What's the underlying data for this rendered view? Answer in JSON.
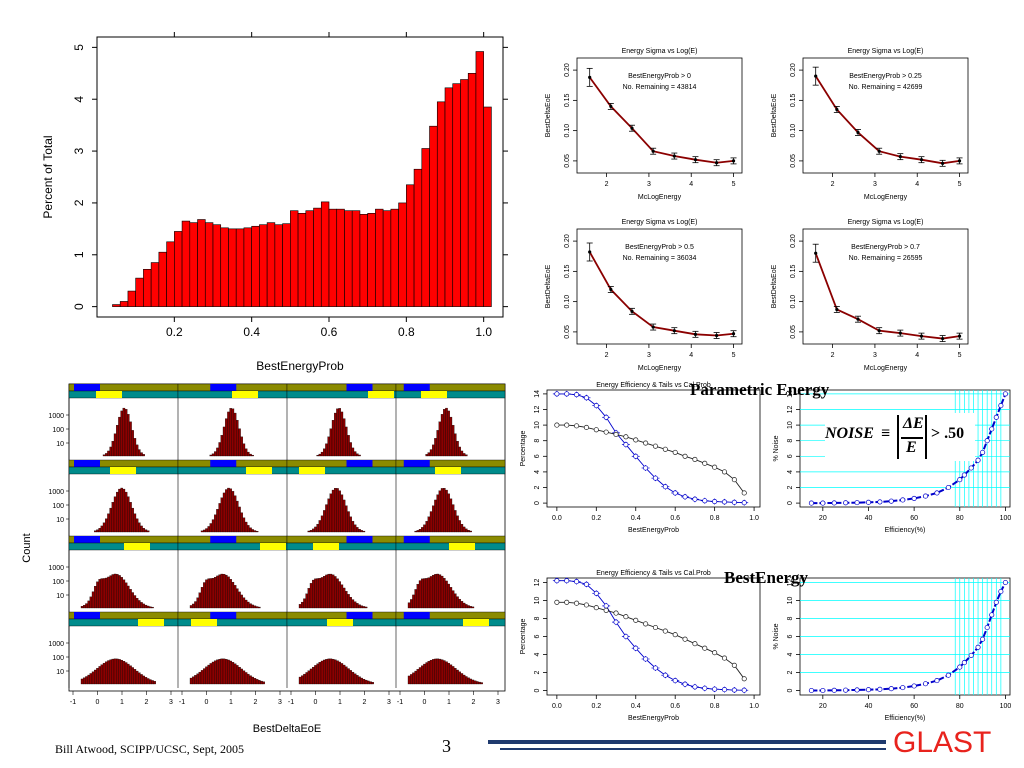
{
  "footer": {
    "author": "Bill Atwood,  SCIPP/UCSC, Sept, 2005",
    "page": "3",
    "logo": "GLAST",
    "logo_color": "#e8231d",
    "line_color": "#1f3a6e"
  },
  "overlays": {
    "parametric": "Parametric Energy",
    "best": "BestEnergy",
    "noise_lhs": "NOISE",
    "noise_num": "ΔE",
    "noise_den": "E",
    "noise_rhs": "> .50"
  },
  "chart_data": [
    {
      "id": "hist",
      "type": "bar",
      "xlabel": "BestEnergyProb",
      "ylabel": "Percent of Total",
      "xlim": [
        0.0,
        1.05
      ],
      "ylim": [
        -0.2,
        5.2
      ],
      "xticks": [
        "0.2",
        "0.4",
        "0.6",
        "0.8",
        "1.0"
      ],
      "xtick_values": [
        0.2,
        0.4,
        0.6,
        0.8,
        1.0
      ],
      "yticks": [
        "0",
        "1",
        "2",
        "3",
        "4",
        "5"
      ],
      "bar_color": "#ff0000",
      "bin_start": 0.04,
      "bin_width": 0.02,
      "values": [
        0.04,
        0.1,
        0.3,
        0.55,
        0.72,
        0.85,
        1.05,
        1.25,
        1.45,
        1.65,
        1.62,
        1.68,
        1.62,
        1.58,
        1.52,
        1.5,
        1.5,
        1.52,
        1.55,
        1.58,
        1.62,
        1.58,
        1.6,
        1.85,
        1.8,
        1.85,
        1.9,
        2.02,
        1.88,
        1.88,
        1.85,
        1.85,
        1.78,
        1.8,
        1.88,
        1.85,
        1.88,
        2.0,
        2.35,
        2.65,
        3.05,
        3.48,
        3.95,
        4.22,
        4.3,
        4.38,
        4.5,
        4.92,
        3.85
      ]
    },
    {
      "id": "sigma",
      "type": "line",
      "title": "Energy Sigma vs Log(E)",
      "xlabel": "McLogEnergy",
      "ylabel": "BestDeltaEoE",
      "xlim": [
        1.3,
        5.2
      ],
      "ylim": [
        0.03,
        0.22
      ],
      "xticks": [
        "2",
        "3",
        "4",
        "5"
      ],
      "yticks": [
        "0.05",
        "0.10",
        "0.15",
        "0.20"
      ],
      "line_color": "#8b0000",
      "x": [
        1.6,
        2.1,
        2.6,
        3.1,
        3.6,
        4.1,
        4.6,
        5.0
      ],
      "panels": [
        {
          "cut": "BestEnergyProb  >  0",
          "remaining": "No. Remaining =  43814",
          "y": [
            0.188,
            0.14,
            0.104,
            0.066,
            0.058,
            0.052,
            0.047,
            0.05
          ]
        },
        {
          "cut": "BestEnergyProb  >  0.25",
          "remaining": "No. Remaining =  42699",
          "y": [
            0.19,
            0.135,
            0.097,
            0.066,
            0.057,
            0.052,
            0.046,
            0.05
          ]
        },
        {
          "cut": "BestEnergyProb  >  0.5",
          "remaining": "No. Remaining =  36034",
          "y": [
            0.182,
            0.12,
            0.084,
            0.058,
            0.052,
            0.046,
            0.044,
            0.047
          ]
        },
        {
          "cut": "BestEnergyProb  >  0.7",
          "remaining": "No. Remaining =  26595",
          "y": [
            0.18,
            0.087,
            0.071,
            0.052,
            0.048,
            0.043,
            0.039,
            0.043
          ]
        }
      ]
    },
    {
      "id": "trellis",
      "type": "bar",
      "xlabel": "BestDeltaEoE",
      "ylabel": "Count",
      "ytick_labels": [
        "1000",
        "100",
        "10"
      ],
      "xtick_labels": [
        "-1",
        "0",
        "1",
        "2",
        "3"
      ],
      "strip_colors": {
        "olive": "#8b8b00",
        "teal": "#008b8b",
        "blue": "#0000ff",
        "yellow": "#ffff00"
      },
      "bar_color": "#8b0000"
    },
    {
      "id": "eff1",
      "type": "line",
      "title": "Energy Efficiency & Tails vs Cal.Prob",
      "xlabel": "BestEnergyProb",
      "ylabel": "Percentage",
      "xlim": [
        -0.05,
        1.03
      ],
      "ylim": [
        -0.5,
        14.5
      ],
      "xticks": [
        "0.0",
        "0.2",
        "0.4",
        "0.6",
        "0.8",
        "1.0"
      ],
      "yticks": [
        "0",
        "2",
        "4",
        "6",
        "8",
        "10",
        "12",
        "14"
      ],
      "x": [
        0.0,
        0.05,
        0.1,
        0.15,
        0.2,
        0.25,
        0.3,
        0.35,
        0.4,
        0.45,
        0.5,
        0.55,
        0.6,
        0.65,
        0.7,
        0.75,
        0.8,
        0.85,
        0.9,
        0.95
      ],
      "series": [
        {
          "color": "#0000cc",
          "y": [
            14.0,
            14.0,
            13.9,
            13.5,
            12.5,
            11.0,
            9.0,
            7.5,
            6.0,
            4.5,
            3.2,
            2.1,
            1.3,
            0.8,
            0.5,
            0.3,
            0.2,
            0.15,
            0.1,
            0.05
          ]
        },
        {
          "color": "#222222",
          "y": [
            10.0,
            10.0,
            9.9,
            9.7,
            9.4,
            9.1,
            8.8,
            8.5,
            8.1,
            7.7,
            7.3,
            6.9,
            6.5,
            6.0,
            5.6,
            5.1,
            4.6,
            4.0,
            3.0,
            1.3
          ]
        }
      ]
    },
    {
      "id": "noise1",
      "type": "line",
      "xlabel": "Efficiency(%)",
      "ylabel": "% Noise",
      "xlim": [
        10,
        102
      ],
      "ylim": [
        -0.5,
        14.5
      ],
      "xticks": [
        "20",
        "40",
        "60",
        "80",
        "100"
      ],
      "yticks": [
        "0",
        "2",
        "4",
        "6",
        "8",
        "10",
        "12",
        "14"
      ],
      "line_color": "#0000cc",
      "grid_color": "#00ffff",
      "x": [
        15,
        20,
        25,
        30,
        35,
        40,
        45,
        50,
        55,
        60,
        65,
        70,
        75,
        80,
        82,
        85,
        88,
        90,
        92,
        94,
        96,
        98,
        100
      ],
      "y": [
        0,
        0,
        0.02,
        0.04,
        0.06,
        0.1,
        0.15,
        0.25,
        0.4,
        0.6,
        0.9,
        1.3,
        2.0,
        3.0,
        3.6,
        4.5,
        5.5,
        6.5,
        8.0,
        9.5,
        11.0,
        12.5,
        14.0
      ]
    },
    {
      "id": "eff2",
      "type": "line",
      "title": "Energy Efficiency & Tails vs Cal.Prob",
      "xlabel": "BestEnergyProb",
      "ylabel": "Percentage",
      "xlim": [
        -0.05,
        1.03
      ],
      "ylim": [
        -0.5,
        12.5
      ],
      "xticks": [
        "0.0",
        "0.2",
        "0.4",
        "0.6",
        "0.8",
        "1.0"
      ],
      "yticks": [
        "0",
        "2",
        "4",
        "6",
        "8",
        "10",
        "12"
      ],
      "x": [
        0.0,
        0.05,
        0.1,
        0.15,
        0.2,
        0.25,
        0.3,
        0.35,
        0.4,
        0.45,
        0.5,
        0.55,
        0.6,
        0.65,
        0.7,
        0.75,
        0.8,
        0.85,
        0.9,
        0.95
      ],
      "series": [
        {
          "color": "#0000cc",
          "y": [
            12.2,
            12.2,
            12.1,
            11.8,
            10.8,
            9.4,
            7.6,
            6.0,
            4.7,
            3.5,
            2.5,
            1.7,
            1.1,
            0.7,
            0.4,
            0.25,
            0.15,
            0.1,
            0.05,
            0.03
          ]
        },
        {
          "color": "#222222",
          "y": [
            9.8,
            9.8,
            9.7,
            9.5,
            9.2,
            8.9,
            8.6,
            8.2,
            7.8,
            7.4,
            7.0,
            6.6,
            6.2,
            5.7,
            5.2,
            4.7,
            4.2,
            3.6,
            2.8,
            1.3
          ]
        }
      ]
    },
    {
      "id": "noise2",
      "type": "line",
      "xlabel": "Efficiency(%)",
      "ylabel": "% Noise",
      "xlim": [
        10,
        102
      ],
      "ylim": [
        -0.5,
        12.5
      ],
      "xticks": [
        "20",
        "40",
        "60",
        "80",
        "100"
      ],
      "yticks": [
        "0",
        "2",
        "4",
        "6",
        "8",
        "10",
        "12"
      ],
      "line_color": "#0000cc",
      "grid_color": "#00ffff",
      "x": [
        15,
        20,
        25,
        30,
        35,
        40,
        45,
        50,
        55,
        60,
        65,
        70,
        75,
        80,
        82,
        85,
        88,
        90,
        92,
        94,
        96,
        98,
        100
      ],
      "y": [
        0,
        0,
        0.02,
        0.04,
        0.06,
        0.09,
        0.13,
        0.2,
        0.32,
        0.5,
        0.75,
        1.1,
        1.7,
        2.6,
        3.1,
        3.9,
        4.8,
        5.7,
        7.0,
        8.4,
        9.8,
        11.0,
        12.0
      ]
    }
  ]
}
